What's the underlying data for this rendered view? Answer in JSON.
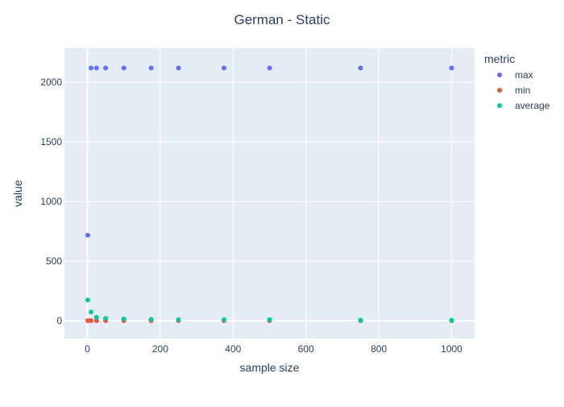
{
  "chart_data": {
    "type": "scatter",
    "title": "German - Static",
    "xlabel": "sample size",
    "ylabel": "value",
    "xlim": [
      -63,
      1063
    ],
    "ylim": [
      -150,
      2285
    ],
    "xticks": [
      0,
      200,
      400,
      600,
      800,
      1000
    ],
    "yticks": [
      0,
      500,
      1000,
      1500,
      2000
    ],
    "grid": true,
    "legend": {
      "title": "metric",
      "placement": "right"
    },
    "series": [
      {
        "name": "max",
        "color": "#636efa",
        "points": [
          [
            1,
            717
          ],
          [
            10,
            2120
          ],
          [
            25,
            2120
          ],
          [
            50,
            2120
          ],
          [
            100,
            2120
          ],
          [
            175,
            2120
          ],
          [
            250,
            2120
          ],
          [
            375,
            2120
          ],
          [
            500,
            2120
          ],
          [
            750,
            2120
          ],
          [
            1000,
            2120
          ]
        ]
      },
      {
        "name": "min",
        "color": "#EF553B",
        "points": [
          [
            1,
            0
          ],
          [
            10,
            0
          ],
          [
            25,
            0
          ],
          [
            50,
            0
          ],
          [
            100,
            0
          ],
          [
            175,
            0
          ],
          [
            250,
            0
          ],
          [
            375,
            0
          ],
          [
            500,
            0
          ],
          [
            750,
            0
          ],
          [
            1000,
            0
          ]
        ]
      },
      {
        "name": "average",
        "color": "#00cc96",
        "points": [
          [
            1,
            172
          ],
          [
            10,
            72
          ],
          [
            25,
            28
          ],
          [
            50,
            18
          ],
          [
            100,
            14
          ],
          [
            175,
            10
          ],
          [
            250,
            8
          ],
          [
            375,
            8
          ],
          [
            500,
            8
          ],
          [
            750,
            4
          ],
          [
            1000,
            3
          ]
        ]
      }
    ]
  }
}
